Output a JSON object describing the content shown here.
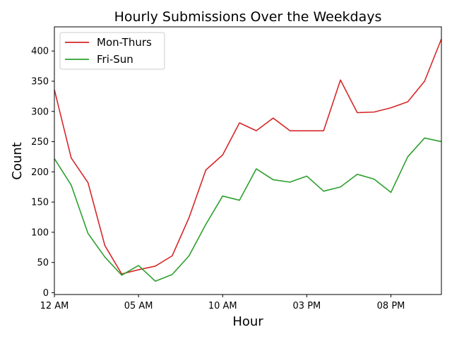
{
  "chart_data": {
    "type": "line",
    "title": "Hourly Submissions Over the Weekdays",
    "xlabel": "Hour",
    "ylabel": "Count",
    "x": [
      0,
      1,
      2,
      3,
      4,
      5,
      6,
      7,
      8,
      9,
      10,
      11,
      12,
      13,
      14,
      15,
      16,
      17,
      18,
      19,
      20,
      21,
      22,
      23
    ],
    "xlim": [
      0,
      23
    ],
    "ylim": [
      -3,
      440
    ],
    "xticks": [
      {
        "value": 0,
        "label": "12 AM"
      },
      {
        "value": 5,
        "label": "05 AM"
      },
      {
        "value": 10,
        "label": "10 AM"
      },
      {
        "value": 15,
        "label": "03 PM"
      },
      {
        "value": 20,
        "label": "08 PM"
      }
    ],
    "yticks": [
      0,
      50,
      100,
      150,
      200,
      250,
      300,
      350,
      400
    ],
    "grid": false,
    "legend_position": "top-left",
    "series": [
      {
        "name": "Mon-Thurs",
        "color": "#d62728",
        "values": [
          336,
          223,
          182,
          78,
          31,
          38,
          44,
          61,
          124,
          203,
          228,
          281,
          268,
          289,
          268,
          268,
          268,
          352,
          298,
          299,
          306,
          316,
          350,
          420
        ]
      },
      {
        "name": "Fri-Sun",
        "color": "#2ca02c",
        "values": [
          222,
          178,
          98,
          59,
          29,
          45,
          19,
          30,
          61,
          113,
          160,
          153,
          205,
          187,
          183,
          193,
          168,
          175,
          196,
          188,
          166,
          225,
          256,
          250
        ]
      }
    ]
  }
}
